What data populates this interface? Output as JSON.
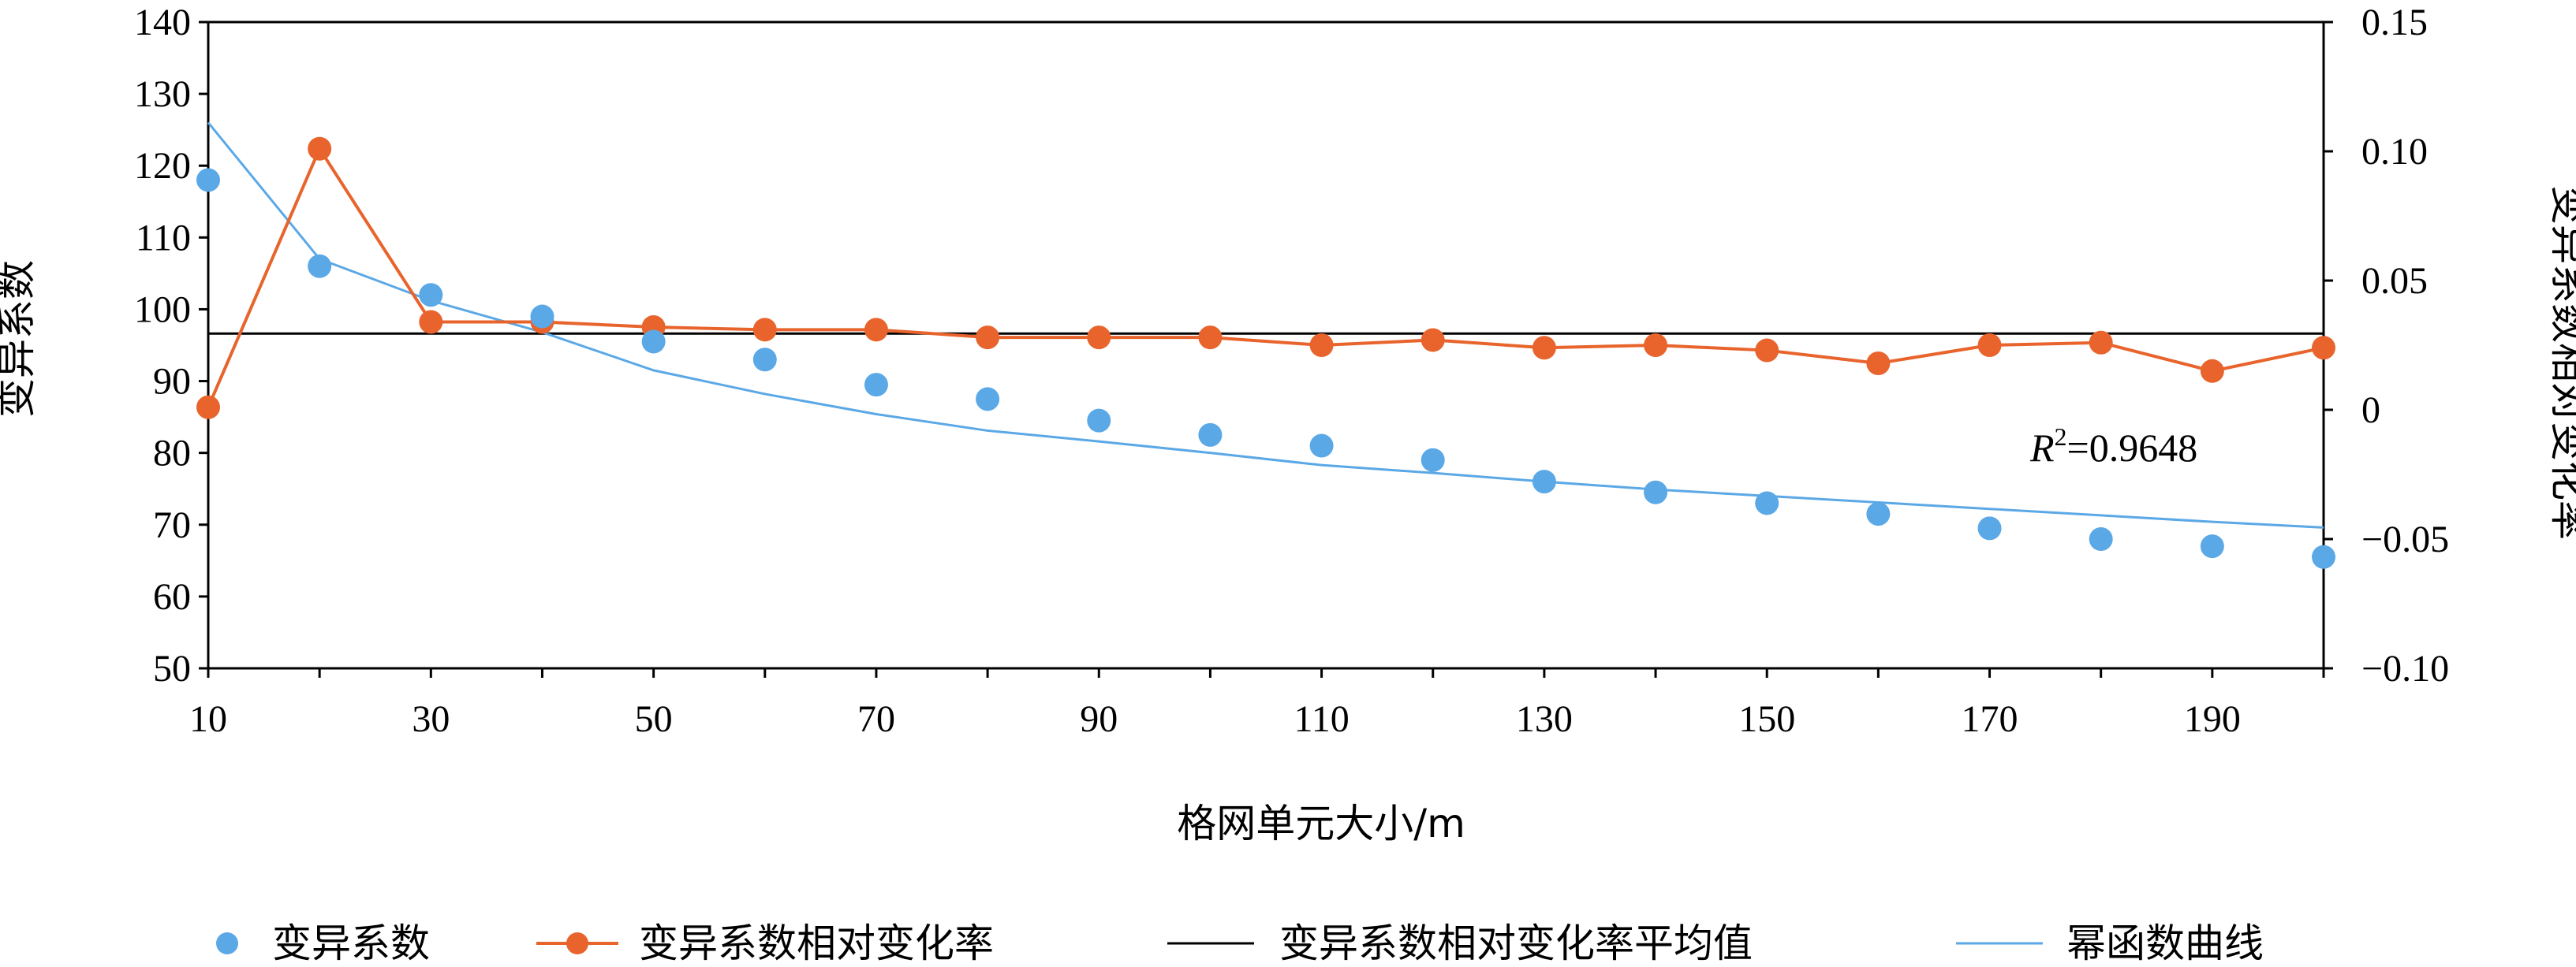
{
  "chart_data": {
    "type": "line",
    "xlabel": "格网单元大小/m",
    "ylabel_left": "变异系数",
    "ylabel_right": "变异系数相对变化率",
    "xlim": [
      10,
      200
    ],
    "ylim_left": [
      50,
      140
    ],
    "ylim_right": [
      -0.1,
      0.15
    ],
    "x_ticks": [
      "10",
      "30",
      "50",
      "70",
      "90",
      "110",
      "130",
      "150",
      "170",
      "190"
    ],
    "y_ticks_left": [
      "50",
      "60",
      "70",
      "80",
      "90",
      "100",
      "110",
      "120",
      "130",
      "140"
    ],
    "y_ticks_right": [
      "−0.10",
      "−0.05",
      "0",
      "0.05",
      "0.10",
      "0.15"
    ],
    "x": [
      10,
      20,
      30,
      40,
      50,
      60,
      70,
      80,
      90,
      100,
      110,
      120,
      130,
      140,
      150,
      160,
      170,
      180,
      190,
      200
    ],
    "series": [
      {
        "name": "变异系数",
        "kind": "scatter",
        "axis": "left",
        "color": "#5BA8E6",
        "values": [
          118,
          106,
          102,
          99,
          95.5,
          93,
          89.5,
          87.5,
          84.5,
          82.5,
          81,
          79,
          76,
          74.5,
          73,
          71.5,
          69.5,
          68,
          67,
          65.5
        ]
      },
      {
        "name": "变异系数相对变化率",
        "kind": "line-marker",
        "axis": "right",
        "color": "#E8642C",
        "values": [
          0.001,
          0.101,
          0.034,
          0.034,
          0.032,
          0.031,
          0.031,
          0.028,
          0.028,
          0.028,
          0.025,
          0.027,
          0.024,
          0.025,
          0.023,
          0.018,
          0.025,
          0.026,
          0.015,
          0.024
        ]
      },
      {
        "name": "变异系数相对变化率平均值",
        "kind": "hline",
        "axis": "right",
        "color": "#000000",
        "value": 0.0295
      },
      {
        "name": "幂函数曲线",
        "kind": "curve",
        "axis": "left",
        "color": "#5BA8E6",
        "values": [
          126,
          107,
          101.2,
          96.8,
          91.5,
          88.2,
          85.4,
          83.1,
          81.6,
          80,
          78.3,
          77.2,
          76,
          74.9,
          74,
          73.1,
          72.2,
          71.3,
          70.4,
          69.6
        ]
      }
    ],
    "annotation": {
      "text_italic": "R",
      "sup": "2",
      "text": "=0.9648"
    },
    "legend_position": "bottom"
  }
}
